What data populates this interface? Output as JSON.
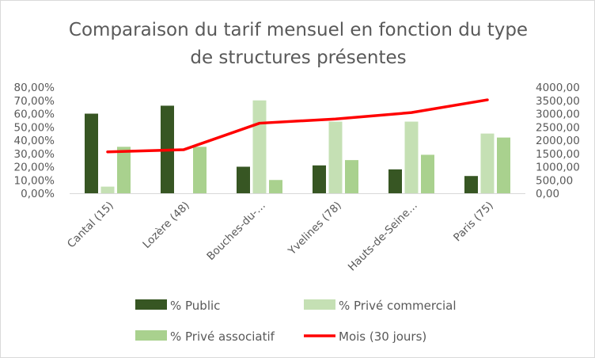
{
  "chart_data": {
    "type": "bar",
    "title_lines": [
      "Comparaison du tarif mensuel en fonction du type",
      "de structures présentes"
    ],
    "categories": [
      "Cantal (15)",
      "Lozère (48)",
      "Bouches-du-…",
      "Yvelines (78)",
      "Hauts-de-Seine…",
      "Paris (75)"
    ],
    "y_left": {
      "ylim": [
        0,
        0.8
      ],
      "ticks": [
        "0,00%",
        "10,00%",
        "20,00%",
        "30,00%",
        "40,00%",
        "50,00%",
        "60,00%",
        "70,00%",
        "80,00%"
      ]
    },
    "y_right": {
      "ylim": [
        0,
        4000
      ],
      "ticks": [
        "0,00",
        "500,00",
        "1000,00",
        "1500,00",
        "2000,00",
        "2500,00",
        "3000,00",
        "3500,00",
        "4000,00"
      ]
    },
    "series": [
      {
        "name": "% Public",
        "kind": "bar",
        "axis": "left",
        "color": "#375623",
        "values": [
          0.6,
          0.66,
          0.2,
          0.21,
          0.18,
          0.13
        ]
      },
      {
        "name": "% Privé commercial",
        "kind": "bar",
        "axis": "left",
        "color": "#c5e0b4",
        "values": [
          0.05,
          0.0,
          0.7,
          0.54,
          0.54,
          0.45
        ]
      },
      {
        "name": "% Privé associatif",
        "kind": "bar",
        "axis": "left",
        "color": "#a9d18e",
        "values": [
          0.35,
          0.35,
          0.1,
          0.25,
          0.29,
          0.42
        ]
      },
      {
        "name": "Mois (30 jours)",
        "kind": "line",
        "axis": "right",
        "color": "#ff0000",
        "values": [
          1560,
          1640,
          2640,
          2800,
          3040,
          3520
        ]
      }
    ],
    "legend": {
      "placement": "bottom",
      "items": [
        {
          "label": "% Public",
          "marker": "square",
          "color": "#375623"
        },
        {
          "label": "% Privé commercial",
          "marker": "square",
          "color": "#c5e0b4"
        },
        {
          "label": "% Privé associatif",
          "marker": "square",
          "color": "#a9d18e"
        },
        {
          "label": "Mois (30 jours)",
          "marker": "line",
          "color": "#ff0000"
        }
      ]
    },
    "grid": false
  }
}
